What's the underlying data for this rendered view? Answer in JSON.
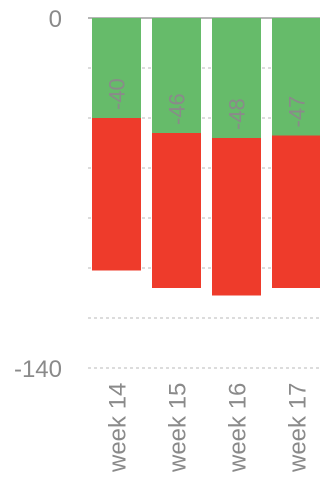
{
  "chart_data": {
    "type": "bar",
    "stacked": true,
    "categories": [
      "week 14",
      "week 15",
      "week 16",
      "week 17"
    ],
    "series": [
      {
        "values": [
          -40,
          -46,
          -48,
          -47
        ],
        "color": "#66bb6a"
      },
      {
        "values": [
          -61,
          -62,
          -63,
          -61
        ],
        "color": "#ee3b2b"
      }
    ],
    "bar_labels": [
      "-40",
      "-46",
      "-48",
      "-47"
    ],
    "ylim": [
      -140,
      0
    ],
    "y_tick_labels": [
      {
        "value": 0,
        "label": "0"
      },
      {
        "value": -140,
        "label": "-140"
      }
    ],
    "grid": true,
    "xlabel": "",
    "ylabel": ""
  }
}
